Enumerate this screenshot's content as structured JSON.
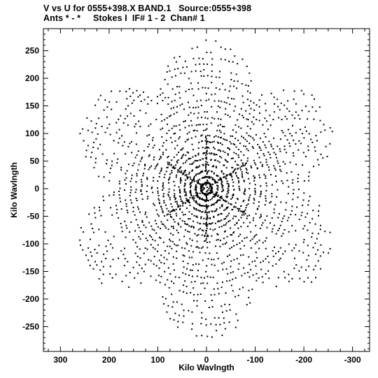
{
  "header": {
    "line1": "V vs U for 0555+398.X BAND.1   Source:0555+398",
    "line2": "Ants * - *     Stokes I  IF# 1 - 2  Chan# 1"
  },
  "chart_data": {
    "type": "scatter",
    "xlabel": "Kilo Wavlngth",
    "ylabel": "Kilo Wavlngth",
    "xlim": [
      335,
      -335
    ],
    "ylim": [
      -295,
      290
    ],
    "x_ticks": [
      300,
      200,
      100,
      0,
      -100,
      -200,
      -300
    ],
    "x_tick_labels": [
      "300",
      "200",
      "100",
      "0",
      "-100",
      "-200",
      "-300"
    ],
    "y_ticks": [
      250,
      200,
      150,
      100,
      50,
      0,
      -50,
      -100,
      -150,
      -200,
      -250
    ],
    "y_tick_labels": [
      "250",
      "200",
      "150",
      "100",
      "50",
      "0",
      "-50",
      "-100",
      "-150",
      "-200",
      "-250"
    ],
    "grid": false,
    "marker_color": "#000000",
    "point_pattern": {
      "description": "VLA uv-coverage: six-armed star, symmetric under (u,v) -> (-u,-v), concentric elliptical tracks",
      "arm_angles_deg": [
        90,
        30,
        150
      ],
      "arm_extent": 290,
      "arm_half_width": 110,
      "track_count": 26,
      "samples_per_track": 170
    }
  }
}
